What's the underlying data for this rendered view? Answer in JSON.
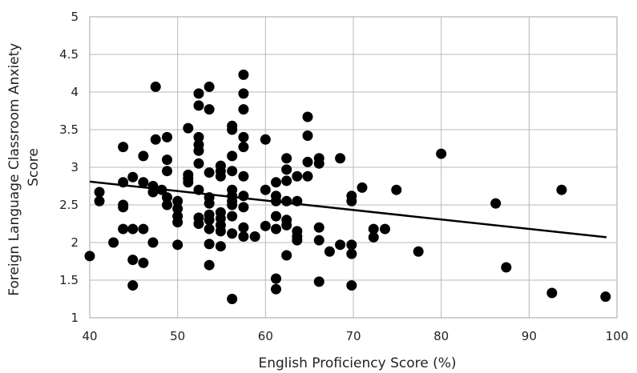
{
  "chart_data": {
    "type": "scatter",
    "xlabel": "English Proficiency Score (%)",
    "ylabel_lines": [
      "Foreign Language Classroom Anxiety",
      "Score"
    ],
    "xlim": [
      40,
      100
    ],
    "ylim": [
      1,
      5
    ],
    "x_ticks": [
      40,
      50,
      60,
      70,
      80,
      90,
      100
    ],
    "y_ticks": [
      1,
      1.5,
      2,
      2.5,
      3,
      3.5,
      4,
      4.5,
      5
    ],
    "grid": true,
    "legend": "none",
    "marker_color": "#000000",
    "points": [
      [
        40.0,
        1.82
      ],
      [
        41.1,
        2.67
      ],
      [
        41.1,
        2.55
      ],
      [
        42.7,
        2.0
      ],
      [
        43.8,
        3.27
      ],
      [
        43.8,
        2.8
      ],
      [
        43.8,
        2.5
      ],
      [
        43.8,
        2.47
      ],
      [
        43.8,
        2.18
      ],
      [
        44.9,
        2.87
      ],
      [
        44.9,
        2.18
      ],
      [
        44.9,
        1.77
      ],
      [
        44.9,
        1.43
      ],
      [
        46.1,
        3.15
      ],
      [
        46.1,
        2.8
      ],
      [
        46.1,
        2.18
      ],
      [
        46.1,
        1.73
      ],
      [
        47.2,
        2.75
      ],
      [
        47.2,
        2.67
      ],
      [
        47.2,
        2.0
      ],
      [
        47.5,
        4.07
      ],
      [
        47.5,
        3.37
      ],
      [
        48.2,
        2.7
      ],
      [
        48.8,
        3.4
      ],
      [
        48.8,
        3.1
      ],
      [
        48.8,
        2.95
      ],
      [
        48.8,
        2.6
      ],
      [
        48.8,
        2.5
      ],
      [
        50.0,
        2.55
      ],
      [
        50.0,
        2.45
      ],
      [
        50.0,
        2.35
      ],
      [
        50.0,
        2.27
      ],
      [
        50.0,
        1.97
      ],
      [
        51.2,
        3.52
      ],
      [
        51.2,
        2.9
      ],
      [
        51.2,
        2.85
      ],
      [
        51.2,
        2.8
      ],
      [
        52.4,
        3.98
      ],
      [
        52.4,
        3.82
      ],
      [
        52.4,
        3.4
      ],
      [
        52.4,
        3.3
      ],
      [
        52.4,
        3.22
      ],
      [
        52.4,
        3.05
      ],
      [
        52.4,
        2.7
      ],
      [
        52.4,
        2.33
      ],
      [
        52.4,
        2.25
      ],
      [
        53.6,
        4.07
      ],
      [
        53.6,
        3.77
      ],
      [
        53.6,
        2.93
      ],
      [
        53.6,
        2.6
      ],
      [
        53.6,
        2.52
      ],
      [
        53.6,
        2.37
      ],
      [
        53.6,
        2.3
      ],
      [
        53.6,
        2.18
      ],
      [
        53.6,
        1.98
      ],
      [
        53.6,
        1.7
      ],
      [
        54.9,
        3.02
      ],
      [
        54.9,
        2.95
      ],
      [
        54.9,
        2.88
      ],
      [
        54.9,
        2.4
      ],
      [
        54.9,
        2.32
      ],
      [
        54.9,
        2.23
      ],
      [
        54.9,
        2.15
      ],
      [
        54.9,
        1.95
      ],
      [
        56.2,
        3.55
      ],
      [
        56.2,
        3.5
      ],
      [
        56.2,
        3.15
      ],
      [
        56.2,
        2.95
      ],
      [
        56.2,
        2.7
      ],
      [
        56.2,
        2.62
      ],
      [
        56.2,
        2.55
      ],
      [
        56.2,
        2.5
      ],
      [
        56.2,
        2.35
      ],
      [
        56.2,
        2.12
      ],
      [
        56.2,
        1.25
      ],
      [
        57.5,
        4.23
      ],
      [
        57.5,
        3.98
      ],
      [
        57.5,
        3.77
      ],
      [
        57.5,
        3.4
      ],
      [
        57.5,
        3.27
      ],
      [
        57.5,
        2.88
      ],
      [
        57.5,
        2.62
      ],
      [
        57.5,
        2.47
      ],
      [
        57.5,
        2.2
      ],
      [
        57.5,
        2.08
      ],
      [
        58.8,
        2.08
      ],
      [
        60.0,
        3.37
      ],
      [
        60.0,
        2.7
      ],
      [
        60.0,
        2.22
      ],
      [
        61.2,
        2.8
      ],
      [
        61.2,
        2.62
      ],
      [
        61.2,
        2.55
      ],
      [
        61.2,
        2.35
      ],
      [
        61.2,
        2.18
      ],
      [
        61.2,
        1.52
      ],
      [
        61.2,
        1.38
      ],
      [
        62.4,
        3.12
      ],
      [
        62.4,
        2.97
      ],
      [
        62.4,
        2.82
      ],
      [
        62.4,
        2.55
      ],
      [
        62.4,
        2.3
      ],
      [
        62.4,
        2.23
      ],
      [
        62.4,
        1.83
      ],
      [
        63.6,
        2.88
      ],
      [
        63.6,
        2.55
      ],
      [
        63.6,
        2.15
      ],
      [
        63.6,
        2.08
      ],
      [
        63.6,
        2.03
      ],
      [
        64.8,
        3.67
      ],
      [
        64.8,
        3.42
      ],
      [
        64.8,
        3.07
      ],
      [
        64.8,
        2.88
      ],
      [
        66.1,
        3.12
      ],
      [
        66.1,
        3.05
      ],
      [
        66.1,
        2.2
      ],
      [
        66.1,
        2.03
      ],
      [
        66.1,
        1.48
      ],
      [
        67.3,
        1.88
      ],
      [
        68.5,
        3.12
      ],
      [
        68.5,
        1.97
      ],
      [
        69.8,
        2.62
      ],
      [
        69.8,
        2.55
      ],
      [
        69.8,
        1.97
      ],
      [
        69.8,
        1.85
      ],
      [
        69.8,
        1.43
      ],
      [
        71.0,
        2.73
      ],
      [
        72.3,
        2.18
      ],
      [
        72.3,
        2.07
      ],
      [
        73.6,
        2.18
      ],
      [
        74.9,
        2.7
      ],
      [
        77.4,
        1.88
      ],
      [
        80.0,
        3.18
      ],
      [
        86.2,
        2.52
      ],
      [
        87.4,
        1.67
      ],
      [
        92.6,
        1.33
      ],
      [
        93.7,
        2.7
      ],
      [
        98.7,
        1.28
      ]
    ],
    "trendline": {
      "x": [
        40,
        98.8
      ],
      "y": [
        2.81,
        2.07
      ]
    }
  }
}
